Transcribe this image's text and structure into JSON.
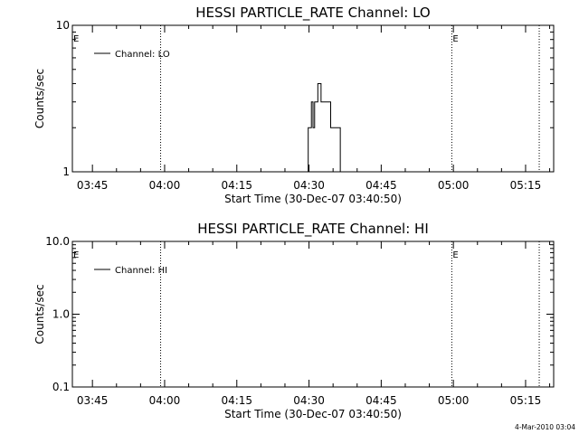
{
  "footer_timestamp": "4-Mar-2010 03:04",
  "chart_data": [
    {
      "type": "line",
      "title": "HESSI PARTICLE_RATE Channel: LO",
      "xlabel": "Start Time (30-Dec-07 03:40:50)",
      "ylabel": "Counts/sec",
      "y_scale": "log",
      "ylim": [
        1,
        10
      ],
      "y_ticks": [
        "1",
        "10"
      ],
      "xlim": [
        "03:40:50",
        "05:20:50"
      ],
      "x_ticks": [
        "03:45",
        "04:00",
        "04:15",
        "04:30",
        "04:45",
        "05:00",
        "05:15"
      ],
      "grid": false,
      "legend_position": "top-left",
      "series": [
        {
          "name": "Channel: LO",
          "x": [
            "04:29:30",
            "04:29:50",
            "04:30:10",
            "04:30:30",
            "04:30:50",
            "04:31:10",
            "04:31:30",
            "04:31:50",
            "04:32:10",
            "04:32:30",
            "04:32:50",
            "04:33:10",
            "04:33:30",
            "04:33:50",
            "04:34:10",
            "04:34:30",
            "04:34:50",
            "04:35:10",
            "04:35:30",
            "04:35:50",
            "04:36:10",
            "04:36:30",
            "04:36:50"
          ],
          "y": [
            1,
            2,
            2,
            3,
            2,
            3,
            3,
            4,
            4,
            3,
            3,
            3,
            3,
            3,
            3,
            2,
            2,
            2,
            2,
            2,
            2,
            1,
            1
          ]
        }
      ],
      "vertical_markers": [
        {
          "time": "03:40:50",
          "label": "E"
        },
        {
          "time": "03:59:10",
          "label": ""
        },
        {
          "time": "04:59:40",
          "label": "E"
        },
        {
          "time": "05:17:50",
          "label": ""
        }
      ]
    },
    {
      "type": "line",
      "title": "HESSI PARTICLE_RATE Channel: HI",
      "xlabel": "Start Time (30-Dec-07 03:40:50)",
      "ylabel": "Counts/sec",
      "y_scale": "log",
      "ylim": [
        0.1,
        10
      ],
      "y_ticks": [
        "0.1",
        "1.0",
        "10.0"
      ],
      "xlim": [
        "03:40:50",
        "05:20:50"
      ],
      "x_ticks": [
        "03:45",
        "04:00",
        "04:15",
        "04:30",
        "04:45",
        "05:00",
        "05:15"
      ],
      "grid": false,
      "legend_position": "top-left",
      "series": [
        {
          "name": "Channel: HI",
          "x": [],
          "y": []
        }
      ],
      "vertical_markers": [
        {
          "time": "03:40:50",
          "label": "E"
        },
        {
          "time": "03:59:10",
          "label": ""
        },
        {
          "time": "04:59:40",
          "label": "E"
        },
        {
          "time": "05:17:50",
          "label": ""
        }
      ]
    }
  ]
}
